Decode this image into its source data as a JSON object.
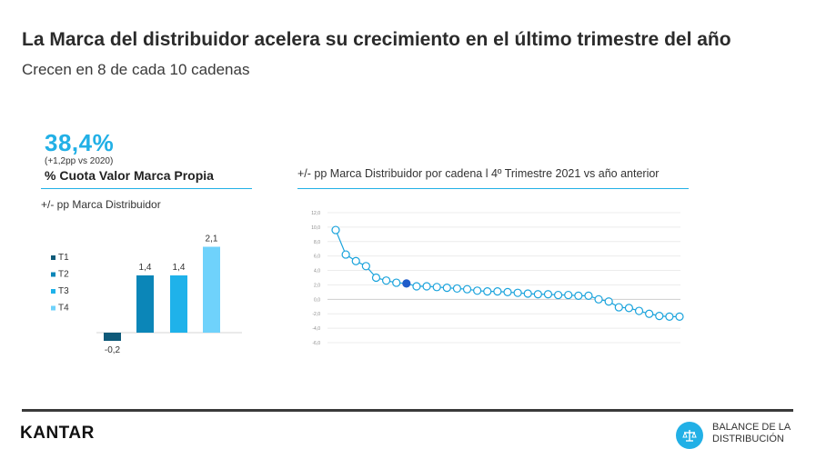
{
  "header": {
    "title": "La Marca del distribuidor acelera su crecimiento en el último trimestre del año",
    "subtitle": "Crecen en 8 de cada 10 cadenas"
  },
  "kpi": {
    "value": "38,4%",
    "note": "(+1,2pp vs 2020)",
    "label": "% Cuota Valor Marca Propia"
  },
  "footer": {
    "logo": "KANTAR",
    "badge_text": "BALANCE DE LA DISTRIBUCIÓN",
    "badge_icon": "scale-icon"
  },
  "colors": {
    "accent": "#22b0e6",
    "line": "#1aa3dc",
    "highlight_point": "#1f5cc9"
  },
  "chart_data": [
    {
      "type": "bar",
      "ylabel": "+/- pp Marca Distribuidor",
      "categories": [
        "T1",
        "T2",
        "T3",
        "T4"
      ],
      "values": [
        -0.2,
        1.4,
        1.4,
        2.1
      ],
      "value_labels": [
        "-0,2",
        "1,4",
        "1,4",
        "2,1"
      ],
      "colors": [
        "#0f5a79",
        "#0b86b8",
        "#1fb2ea",
        "#6fd2fb"
      ],
      "legend": "left",
      "ylim": [
        -0.3,
        2.2
      ]
    },
    {
      "type": "line",
      "title": "+/- pp Marca Distribuidor por cadena l 4º Trimestre 2021 vs año anterior",
      "y_ticks": [
        "12,0",
        "10,0",
        "8,0",
        "6,0",
        "4,0",
        "2,0",
        "0,0",
        "-2,0",
        "-4,0",
        "-6,0"
      ],
      "ylim": [
        -6,
        12
      ],
      "grid": true,
      "highlight_index": 7,
      "values": [
        9.6,
        6.2,
        5.3,
        4.6,
        3.0,
        2.6,
        2.3,
        2.2,
        1.8,
        1.8,
        1.7,
        1.6,
        1.5,
        1.4,
        1.2,
        1.1,
        1.1,
        1.0,
        0.9,
        0.8,
        0.7,
        0.7,
        0.6,
        0.6,
        0.5,
        0.5,
        0.0,
        -0.3,
        -1.1,
        -1.2,
        -1.6,
        -2.0,
        -2.3,
        -2.4,
        -2.4
      ]
    }
  ]
}
